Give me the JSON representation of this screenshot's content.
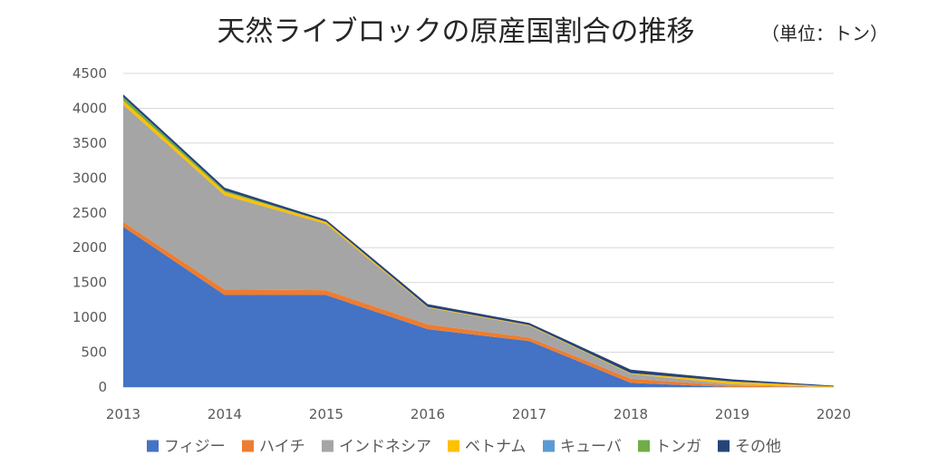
{
  "chart_data": {
    "type": "area",
    "stacked": true,
    "title": "天然ライブロックの原産国割合の推移",
    "unit": "（単位：トン）",
    "x": [
      "2013",
      "2014",
      "2015",
      "2016",
      "2017",
      "2018",
      "2019",
      "2020"
    ],
    "y_ticks": [
      "0",
      "500",
      "1000",
      "1500",
      "2000",
      "2500",
      "3000",
      "3500",
      "4000",
      "4500"
    ],
    "ylim": [
      0,
      4500
    ],
    "grid": true,
    "legend_position": "bottom",
    "series": [
      {
        "name": "フィジー",
        "color": "#4472C4",
        "values": [
          2300,
          1320,
          1320,
          830,
          660,
          60,
          0,
          0
        ]
      },
      {
        "name": "ハイチ",
        "color": "#ED7D31",
        "values": [
          70,
          80,
          70,
          70,
          50,
          60,
          20,
          0
        ]
      },
      {
        "name": "インドネシア",
        "color": "#A5A5A5",
        "values": [
          1680,
          1350,
          950,
          240,
          170,
          70,
          20,
          0
        ]
      },
      {
        "name": "ベトナム",
        "color": "#FFC000",
        "values": [
          60,
          50,
          30,
          10,
          10,
          10,
          40,
          10
        ]
      },
      {
        "name": "キューバ",
        "color": "#5B9BD5",
        "values": [
          0,
          0,
          0,
          0,
          0,
          0,
          0,
          0
        ]
      },
      {
        "name": "トンガ",
        "color": "#70AD47",
        "values": [
          50,
          20,
          0,
          0,
          0,
          0,
          0,
          0
        ]
      },
      {
        "name": "その他",
        "color": "#264478",
        "values": [
          40,
          40,
          30,
          40,
          30,
          50,
          30,
          10
        ]
      }
    ]
  }
}
